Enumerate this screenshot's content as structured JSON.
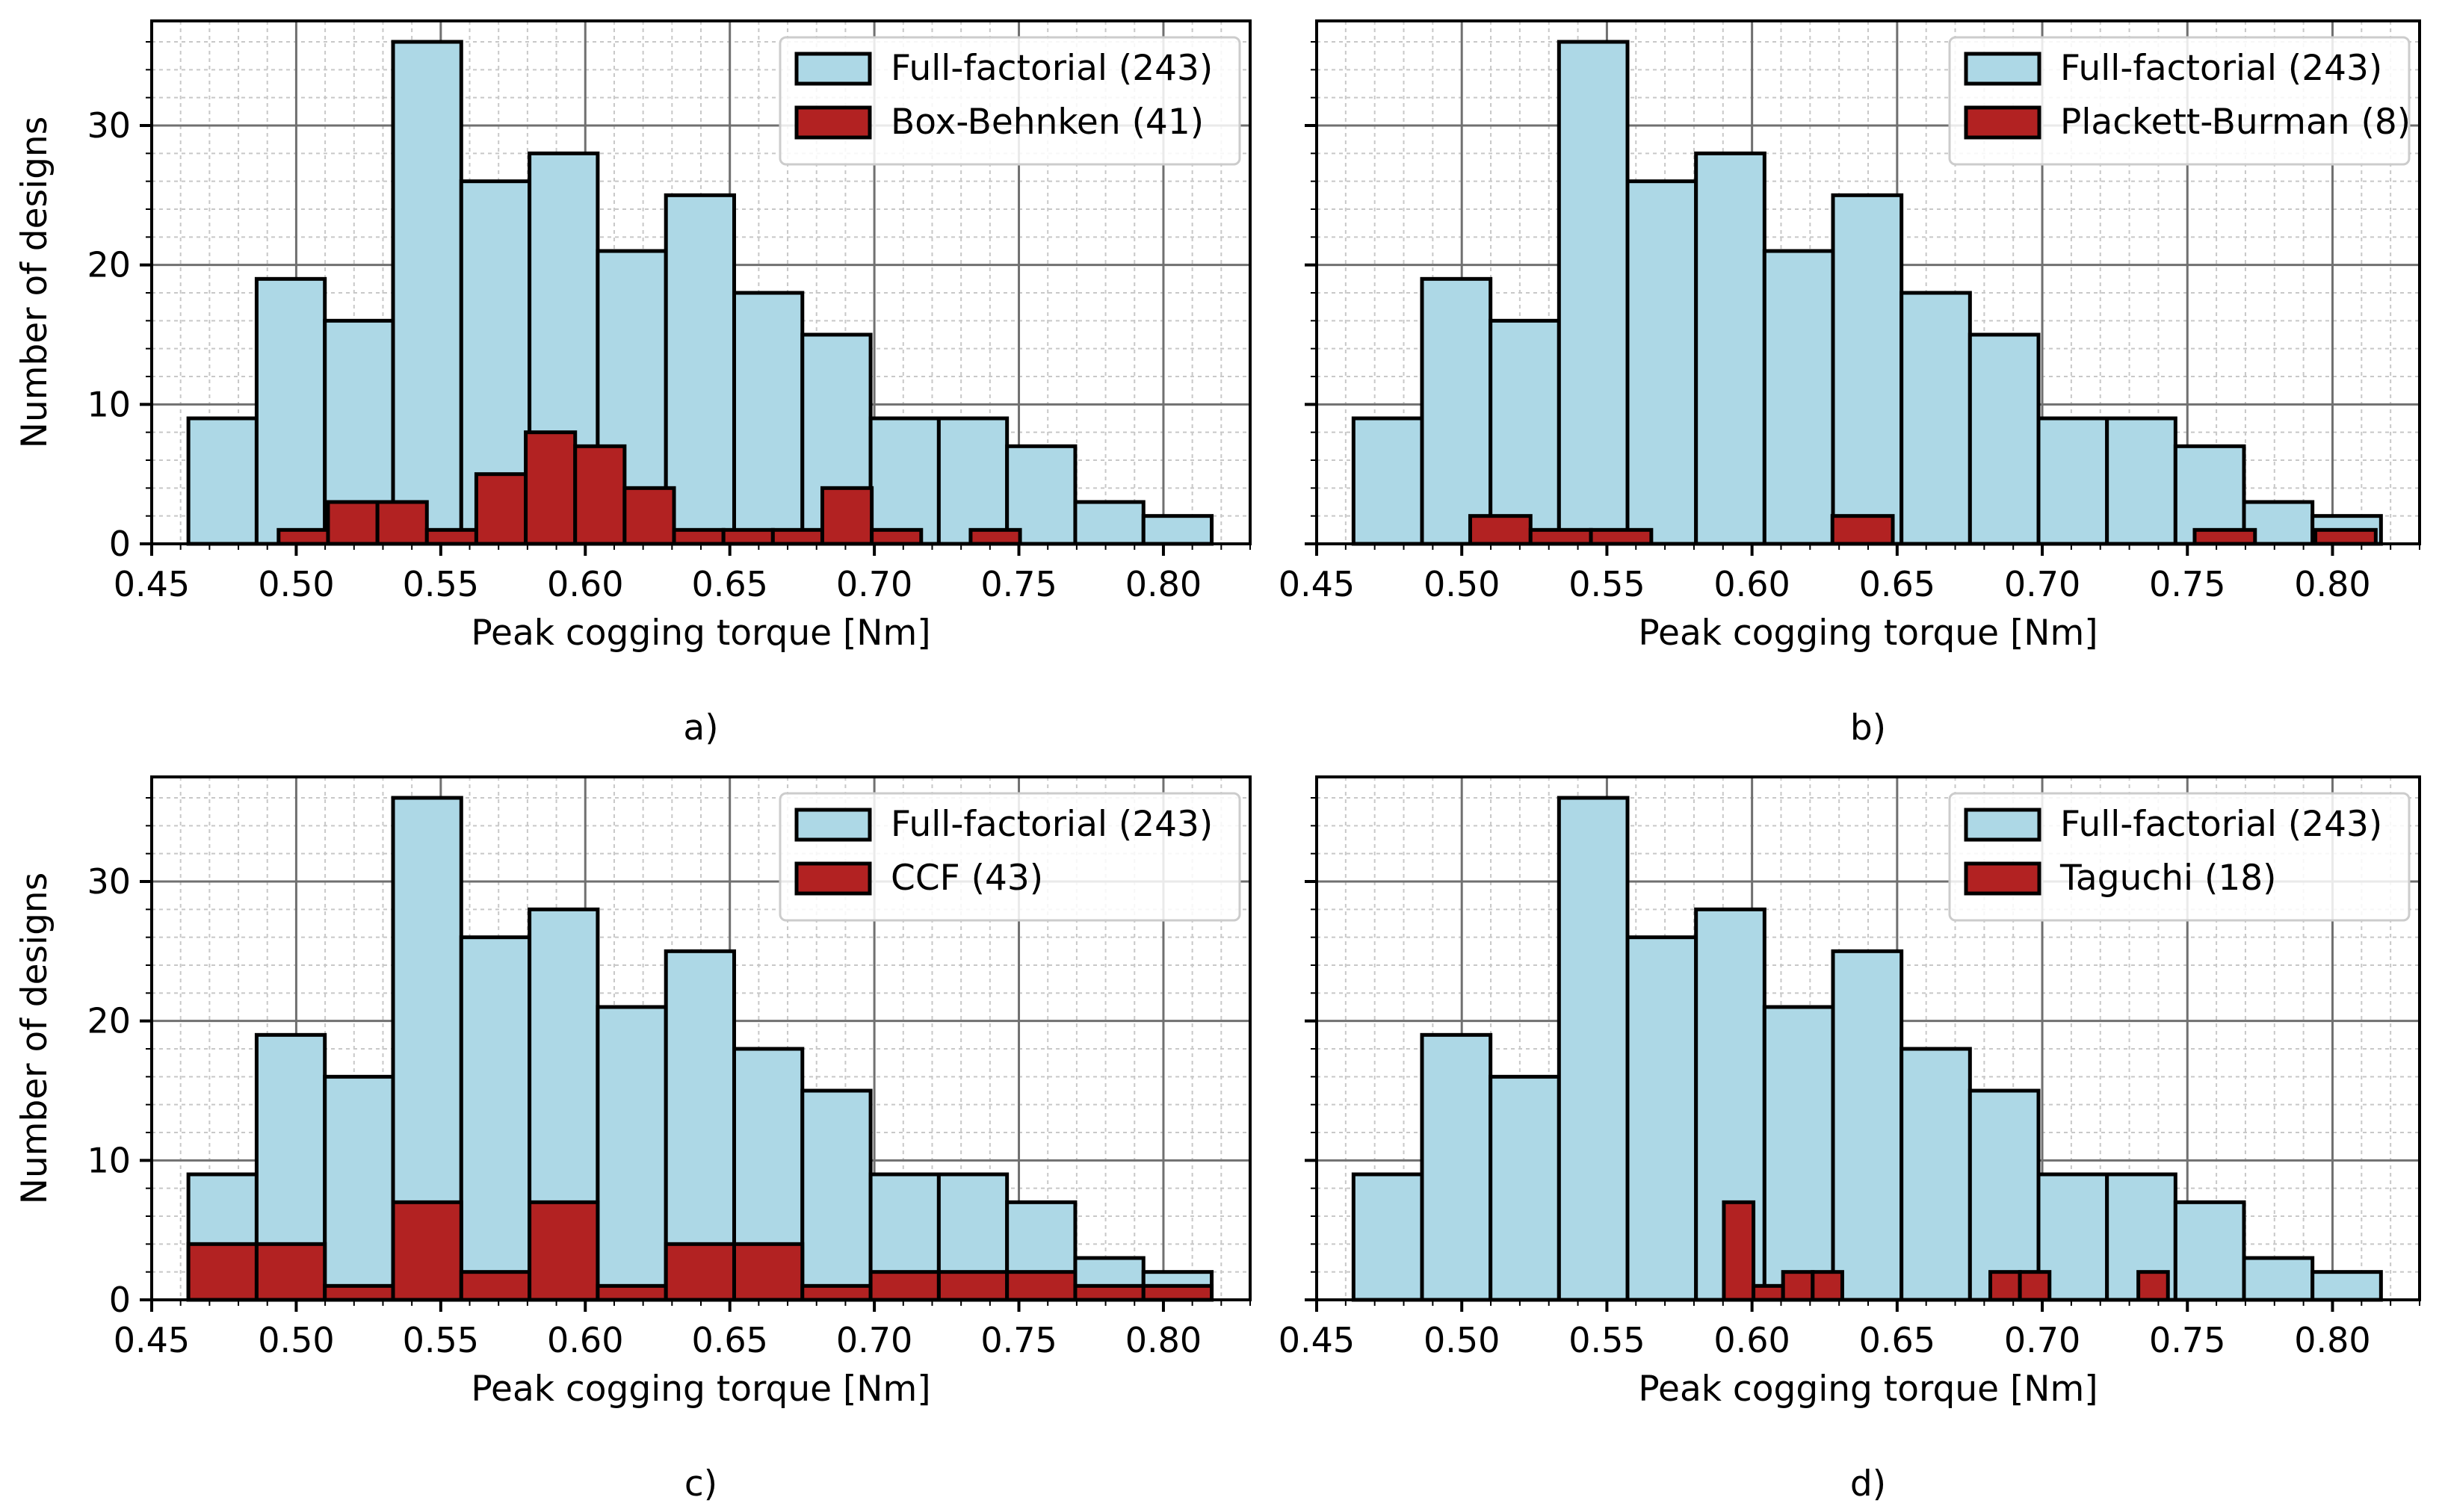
{
  "figure": {
    "colors": {
      "full": "#add8e6",
      "subset": "#b22222",
      "edge": "#000000",
      "grid_major": "#707070",
      "grid_minor": "#c8c8c8"
    }
  },
  "chart_data": [
    {
      "type": "bar",
      "caption": "a)",
      "xlabel": "Peak cogging torque [Nm]",
      "ylabel": "Number of designs",
      "xlim": [
        0.45,
        0.83
      ],
      "ylim": [
        0,
        37.5
      ],
      "xticks": [
        "0.45",
        "0.50",
        "0.55",
        "0.60",
        "0.65",
        "0.70",
        "0.75",
        "0.80"
      ],
      "yticks": [
        "0",
        "10",
        "20",
        "30"
      ],
      "legend_position": "top-right",
      "series": [
        {
          "name": "Full-factorial (243)",
          "style": "full",
          "bin_edges": [
            0.4627,
            0.4863,
            0.5099,
            0.5335,
            0.5571,
            0.5807,
            0.6043,
            0.6279,
            0.6515,
            0.6751,
            0.6987,
            0.7223,
            0.7459,
            0.7695,
            0.7931,
            0.8167
          ],
          "values": [
            9,
            19,
            16,
            36,
            26,
            28,
            21,
            25,
            18,
            15,
            9,
            9,
            7,
            3,
            2
          ]
        },
        {
          "name": "Box-Behnken (41)",
          "style": "subset",
          "bin_edges": [
            0.4939,
            0.511,
            0.5281,
            0.5452,
            0.5623,
            0.5794,
            0.5965,
            0.6136,
            0.6307,
            0.6478,
            0.6649,
            0.682,
            0.6991,
            0.7162,
            0.7333,
            0.7504
          ],
          "values": [
            1,
            3,
            3,
            1,
            5,
            8,
            7,
            4,
            1,
            1,
            1,
            4,
            1,
            0,
            1
          ]
        }
      ]
    },
    {
      "type": "bar",
      "caption": "b)",
      "xlabel": "Peak cogging torque [Nm]",
      "ylabel": "",
      "xlim": [
        0.45,
        0.83
      ],
      "ylim": [
        0,
        37.5
      ],
      "xticks": [
        "0.45",
        "0.50",
        "0.55",
        "0.60",
        "0.65",
        "0.70",
        "0.75",
        "0.80"
      ],
      "yticks": [],
      "legend_position": "top-right",
      "series": [
        {
          "name": "Full-factorial (243)",
          "style": "full",
          "bin_edges": [
            0.4627,
            0.4863,
            0.5099,
            0.5335,
            0.5571,
            0.5807,
            0.6043,
            0.6279,
            0.6515,
            0.6751,
            0.6987,
            0.7223,
            0.7459,
            0.7695,
            0.7931,
            0.8167
          ],
          "values": [
            9,
            19,
            16,
            36,
            26,
            28,
            21,
            25,
            18,
            15,
            9,
            9,
            7,
            3,
            2
          ]
        },
        {
          "name": "Plackett-Burman (8)",
          "style": "subset",
          "bin_edges": [
            0.5029,
            0.5237,
            0.5445,
            0.5653,
            0.5861,
            0.6069,
            0.6277,
            0.6485,
            0.6693,
            0.6901,
            0.7109,
            0.7317,
            0.7525,
            0.7733,
            0.7941,
            0.8149
          ],
          "values": [
            2,
            1,
            1,
            0,
            0,
            0,
            2,
            0,
            0,
            0,
            0,
            0,
            1,
            0,
            1
          ]
        }
      ]
    },
    {
      "type": "bar",
      "caption": "c)",
      "xlabel": "Peak cogging torque [Nm]",
      "ylabel": "Number of designs",
      "xlim": [
        0.45,
        0.83
      ],
      "ylim": [
        0,
        37.5
      ],
      "xticks": [
        "0.45",
        "0.50",
        "0.55",
        "0.60",
        "0.65",
        "0.70",
        "0.75",
        "0.80"
      ],
      "yticks": [
        "0",
        "10",
        "20",
        "30"
      ],
      "legend_position": "top-right",
      "series": [
        {
          "name": "Full-factorial (243)",
          "style": "full",
          "bin_edges": [
            0.4627,
            0.4863,
            0.5099,
            0.5335,
            0.5571,
            0.5807,
            0.6043,
            0.6279,
            0.6515,
            0.6751,
            0.6987,
            0.7223,
            0.7459,
            0.7695,
            0.7931,
            0.8167
          ],
          "values": [
            9,
            19,
            16,
            36,
            26,
            28,
            21,
            25,
            18,
            15,
            9,
            9,
            7,
            3,
            2
          ]
        },
        {
          "name": "CCF (43)",
          "style": "subset",
          "bin_edges": [
            0.4627,
            0.4863,
            0.5099,
            0.5335,
            0.5571,
            0.5807,
            0.6043,
            0.6279,
            0.6515,
            0.6751,
            0.6987,
            0.7223,
            0.7459,
            0.7695,
            0.7931,
            0.8167
          ],
          "values": [
            4,
            4,
            1,
            7,
            2,
            7,
            1,
            4,
            4,
            1,
            2,
            2,
            2,
            1,
            1
          ]
        }
      ]
    },
    {
      "type": "bar",
      "caption": "d)",
      "xlabel": "Peak cogging torque [Nm]",
      "ylabel": "",
      "xlim": [
        0.45,
        0.83
      ],
      "ylim": [
        0,
        37.5
      ],
      "xticks": [
        "0.45",
        "0.50",
        "0.55",
        "0.60",
        "0.65",
        "0.70",
        "0.75",
        "0.80"
      ],
      "yticks": [],
      "legend_position": "top-right",
      "series": [
        {
          "name": "Full-factorial (243)",
          "style": "full",
          "bin_edges": [
            0.4627,
            0.4863,
            0.5099,
            0.5335,
            0.5571,
            0.5807,
            0.6043,
            0.6279,
            0.6515,
            0.6751,
            0.6987,
            0.7223,
            0.7459,
            0.7695,
            0.7931,
            0.8167
          ],
          "values": [
            9,
            19,
            16,
            36,
            26,
            28,
            21,
            25,
            18,
            15,
            9,
            9,
            7,
            3,
            2
          ]
        },
        {
          "name": "Taguchi (18)",
          "style": "subset",
          "bin_edges": [
            0.5903,
            0.6005,
            0.6107,
            0.6209,
            0.6311,
            0.6413,
            0.6515,
            0.6617,
            0.6719,
            0.6821,
            0.6923,
            0.7025,
            0.7127,
            0.7229,
            0.7331,
            0.7433
          ],
          "values": [
            7,
            1,
            2,
            2,
            0,
            0,
            0,
            0,
            0,
            2,
            2,
            0,
            0,
            0,
            2
          ]
        }
      ]
    }
  ]
}
